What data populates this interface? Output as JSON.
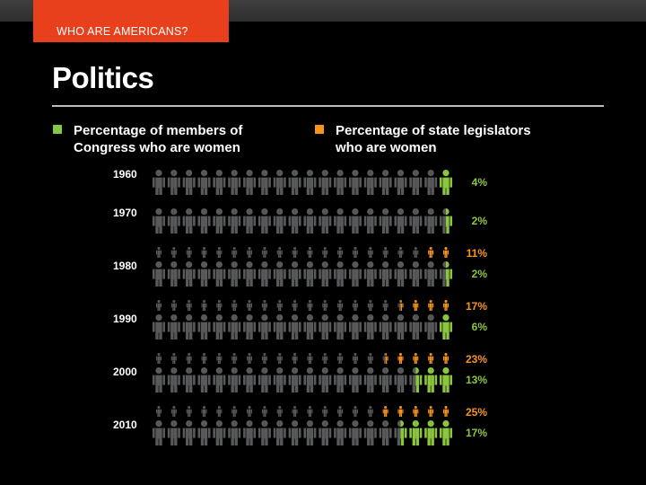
{
  "header": {
    "section_tab": "WHO ARE AMERICANS?"
  },
  "page": {
    "title": "Politics"
  },
  "legend": [
    {
      "label": "Percentage of members of Congress who are women",
      "color": "#8cc63f"
    },
    {
      "label": "Percentage of state legislators who are women",
      "color": "#f7941d"
    }
  ],
  "colors": {
    "congress": "#8cc63f",
    "state": "#f7941d",
    "figure": "#58595b"
  },
  "chart_data": {
    "type": "isotype",
    "title": "Politics",
    "icons_per_row": 20,
    "rows_per_decade": {
      "congress": "large figures",
      "state": "small figures"
    },
    "series": [
      {
        "name": "Percentage of members of Congress who are women",
        "key": "congress"
      },
      {
        "name": "Percentage of state legislators who are women",
        "key": "state"
      }
    ],
    "categories": [
      "1960",
      "1970",
      "1980",
      "1990",
      "2000",
      "2010"
    ],
    "rows": [
      {
        "year": "1960",
        "congress": 4,
        "congress_label": "4%",
        "state": null,
        "state_label": null
      },
      {
        "year": "1970",
        "congress": 2,
        "congress_label": "2%",
        "state": null,
        "state_label": null
      },
      {
        "year": "1980",
        "congress": 2,
        "congress_label": "2%",
        "state": 11,
        "state_label": "11%"
      },
      {
        "year": "1990",
        "congress": 6,
        "congress_label": "6%",
        "state": 17,
        "state_label": "17%"
      },
      {
        "year": "2000",
        "congress": 13,
        "congress_label": "13%",
        "state": 23,
        "state_label": "23%"
      },
      {
        "year": "2010",
        "congress": 17,
        "congress_label": "17%",
        "state": 25,
        "state_label": "25%"
      }
    ]
  }
}
